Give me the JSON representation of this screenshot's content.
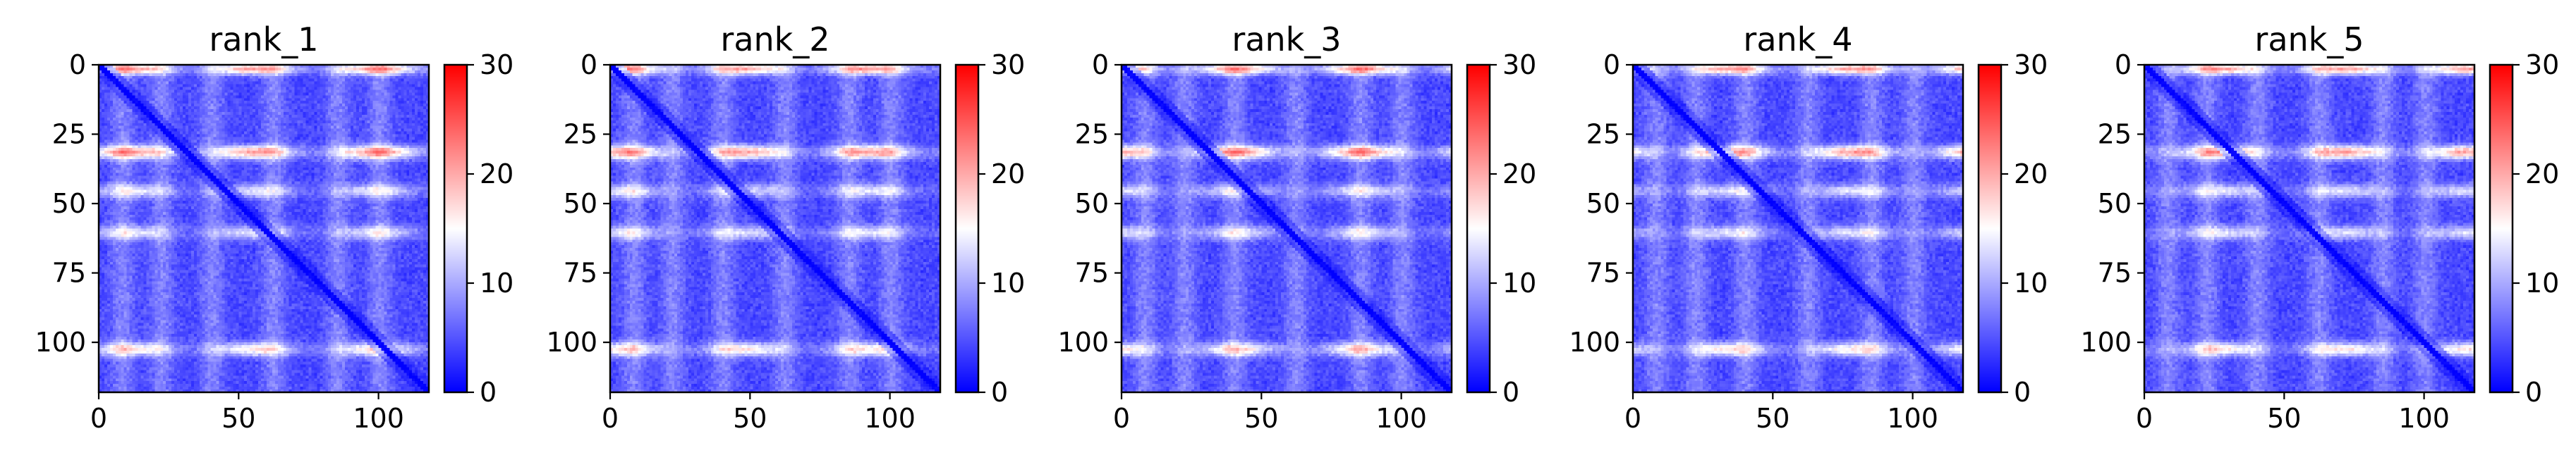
{
  "chart_data": {
    "type": "heatmap",
    "colormap": {
      "name": "bwr",
      "low": "#0000ff",
      "mid": "#ffffff",
      "high": "#ff0000"
    },
    "matrix_size": 118,
    "color_range": [
      0,
      30
    ],
    "colorbar_ticks": [
      "0",
      "10",
      "20",
      "30"
    ],
    "x_ticks": [
      "0",
      "50",
      "100"
    ],
    "y_ticks": [
      "0",
      "25",
      "50",
      "75",
      "100"
    ],
    "hot_rows": [
      1,
      31,
      45,
      60,
      102
    ],
    "panels": [
      {
        "title": "rank_1"
      },
      {
        "title": "rank_2"
      },
      {
        "title": "rank_3"
      },
      {
        "title": "rank_4"
      },
      {
        "title": "rank_5"
      }
    ]
  }
}
